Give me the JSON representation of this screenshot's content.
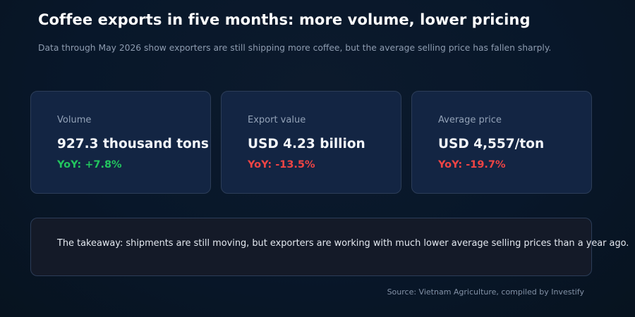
{
  "header": {
    "title": "Coffee exports in five months: more volume, lower pricing",
    "subtitle": "Data through May 2026 show exporters are still shipping more coffee, but the average selling price has fallen sharply."
  },
  "cards": [
    {
      "label": "Volume",
      "value": "927.3 thousand tons",
      "yoy": "YoY: +7.8%",
      "yoy_color": "#22c55e"
    },
    {
      "label": "Export value",
      "value": "USD 4.23 billion",
      "yoy": "YoY: -13.5%",
      "yoy_color": "#ef4444"
    },
    {
      "label": "Average price",
      "value": "USD 4,557/ton",
      "yoy": "YoY: -19.7%",
      "yoy_color": "#ef4444"
    }
  ],
  "takeaway": {
    "text": "The takeaway: shipments are still moving, but exporters are working with much lower average selling prices than a year ago."
  },
  "footer": {
    "source": "Source: Vietnam Agriculture, compiled by Investify"
  }
}
